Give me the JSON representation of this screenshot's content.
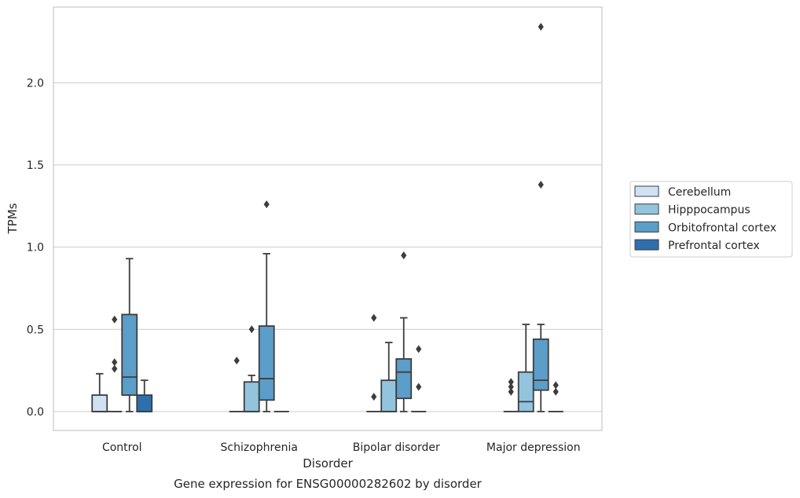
{
  "chart_data": {
    "type": "box",
    "caption": "Gene expression for ENSG00000282602 by disorder",
    "xlabel": "Disorder",
    "ylabel": "TPMs",
    "ylim": [
      -0.115,
      2.46
    ],
    "yticks": [
      "0.0",
      "0.5",
      "1.0",
      "1.5",
      "2.0"
    ],
    "ytick_values": [
      0.0,
      0.5,
      1.0,
      1.5,
      2.0
    ],
    "grid": "horizontal",
    "legend_position": "center-right",
    "categories": [
      "Control",
      "Schizophrenia",
      "Bipolar disorder",
      "Major depression"
    ],
    "series": [
      {
        "name": "Cerebellum",
        "color": "#cfe1f2",
        "boxes": [
          {
            "min": 0.0,
            "q1": 0.0,
            "median": 0.0,
            "q3": 0.1,
            "max": 0.23,
            "outliers": []
          },
          {
            "min": 0.0,
            "q1": 0.0,
            "median": 0.0,
            "q3": 0.0,
            "max": 0.0,
            "outliers": [
              0.31
            ]
          },
          {
            "min": 0.0,
            "q1": 0.0,
            "median": 0.0,
            "q3": 0.0,
            "max": 0.0,
            "outliers": [
              0.57,
              0.09
            ]
          },
          {
            "min": 0.0,
            "q1": 0.0,
            "median": 0.0,
            "q3": 0.0,
            "max": 0.0,
            "outliers": [
              0.18,
              0.15,
              0.12
            ]
          }
        ]
      },
      {
        "name": "Hipppocampus",
        "color": "#93c4de",
        "boxes": [
          {
            "min": 0.0,
            "q1": 0.0,
            "median": 0.0,
            "q3": 0.0,
            "max": 0.0,
            "outliers": [
              0.56,
              0.3,
              0.26
            ]
          },
          {
            "min": 0.0,
            "q1": 0.0,
            "median": 0.0,
            "q3": 0.18,
            "max": 0.22,
            "outliers": [
              0.5
            ]
          },
          {
            "min": 0.0,
            "q1": 0.0,
            "median": 0.0,
            "q3": 0.19,
            "max": 0.42,
            "outliers": []
          },
          {
            "min": 0.0,
            "q1": 0.0,
            "median": 0.06,
            "q3": 0.24,
            "max": 0.53,
            "outliers": []
          }
        ]
      },
      {
        "name": "Orbitofrontal cortex",
        "color": "#5a9ec9",
        "boxes": [
          {
            "min": 0.0,
            "q1": 0.1,
            "median": 0.21,
            "q3": 0.59,
            "max": 0.93,
            "outliers": []
          },
          {
            "min": 0.0,
            "q1": 0.07,
            "median": 0.2,
            "q3": 0.52,
            "max": 0.96,
            "outliers": [
              1.26
            ]
          },
          {
            "min": 0.0,
            "q1": 0.08,
            "median": 0.24,
            "q3": 0.32,
            "max": 0.57,
            "outliers": [
              0.95
            ]
          },
          {
            "min": 0.0,
            "q1": 0.13,
            "median": 0.19,
            "q3": 0.44,
            "max": 0.53,
            "outliers": [
              2.34,
              1.38
            ]
          }
        ]
      },
      {
        "name": "Prefrontal cortex",
        "color": "#2f6fae",
        "boxes": [
          {
            "min": 0.0,
            "q1": 0.0,
            "median": 0.0,
            "q3": 0.1,
            "max": 0.19,
            "outliers": []
          },
          {
            "min": 0.0,
            "q1": 0.0,
            "median": 0.0,
            "q3": 0.0,
            "max": 0.0,
            "outliers": []
          },
          {
            "min": 0.0,
            "q1": 0.0,
            "median": 0.0,
            "q3": 0.0,
            "max": 0.0,
            "outliers": [
              0.38,
              0.15
            ]
          },
          {
            "min": 0.0,
            "q1": 0.0,
            "median": 0.0,
            "q3": 0.0,
            "max": 0.0,
            "outliers": [
              0.16,
              0.12
            ]
          }
        ]
      }
    ]
  }
}
